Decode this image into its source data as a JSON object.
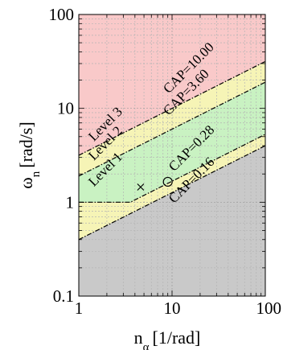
{
  "chart_data": {
    "type": "area",
    "x_scale": "log",
    "y_scale": "log",
    "xlim": [
      1,
      100
    ],
    "ylim": [
      0.1,
      100
    ],
    "grid": true,
    "xlabel": {
      "main": "n",
      "subscript": "α",
      "unit": "[1/rad]"
    },
    "ylabel": {
      "main": "ω",
      "subscript": "n",
      "unit": "[rad/s]"
    },
    "x_ticks": [
      {
        "value": 1,
        "label": "1"
      },
      {
        "value": 10,
        "label": "10"
      },
      {
        "value": 100,
        "label": "100"
      }
    ],
    "y_ticks": [
      {
        "value": 0.1,
        "label": "0.1"
      },
      {
        "value": 1,
        "label": "1"
      },
      {
        "value": 10,
        "label": "10"
      },
      {
        "value": 100,
        "label": "100"
      }
    ],
    "regions": [
      {
        "name": "Level 3",
        "label": "Level 3",
        "color": "#f9c9c9",
        "label_at": [
          1.45,
          4.4
        ]
      },
      {
        "name": "Level 2",
        "label": "Level 2",
        "color": "#f6f4b6",
        "label_at": [
          1.45,
          2.75
        ]
      },
      {
        "name": "Level 1",
        "label": "Level 1",
        "color": "#c9f2c2",
        "label_at": [
          1.45,
          1.45
        ]
      },
      {
        "name": "",
        "label": "",
        "color": "#c9c9c9"
      }
    ],
    "boundaries": [
      {
        "label": "CAP=10.00",
        "points": [
          [
            1,
            3.16
          ],
          [
            100,
            31.6
          ]
        ],
        "label_at": [
          9.2,
          14.2
        ]
      },
      {
        "label": "CAP=3.60",
        "points": [
          [
            1,
            1.9
          ],
          [
            100,
            19.0
          ]
        ],
        "label_at": [
          9.2,
          8.3
        ]
      },
      {
        "label": "CAP=0.28",
        "points": [
          [
            1,
            1.0
          ],
          [
            3.57,
            1.0
          ],
          [
            100,
            5.29
          ]
        ],
        "label_at": [
          10.5,
          2.1
        ]
      },
      {
        "label": "CAP=0.16",
        "points": [
          [
            1,
            0.4
          ],
          [
            100,
            4.0
          ]
        ],
        "label_at": [
          10.5,
          0.96
        ]
      }
    ],
    "points": [
      {
        "marker": "x",
        "x": 4.6,
        "y": 1.45
      },
      {
        "marker": "o",
        "x": 9.0,
        "y": 1.65
      }
    ]
  }
}
